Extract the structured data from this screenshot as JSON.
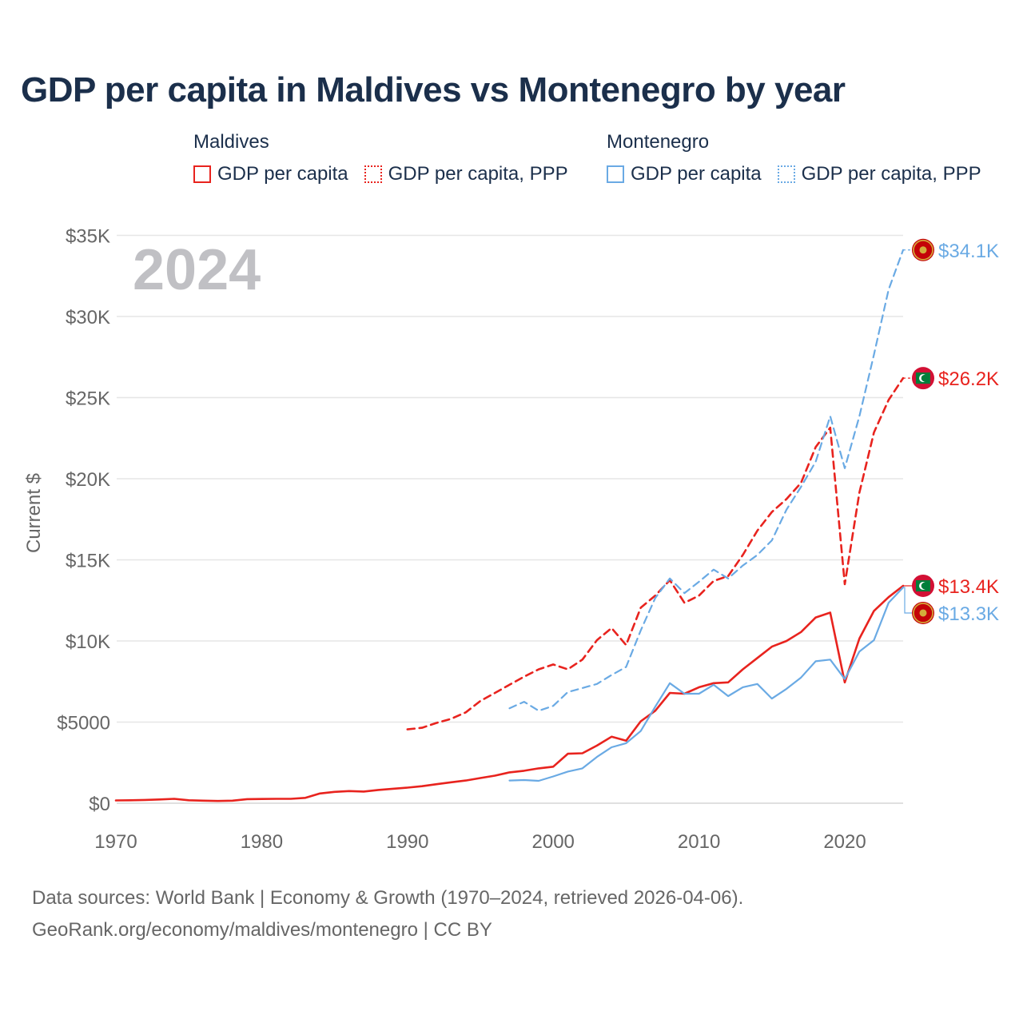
{
  "title": "GDP per capita in Maldives vs Montenegro by year",
  "legend": {
    "maldives": {
      "name": "Maldives",
      "gdp": "GDP per capita",
      "ppp": "GDP per capita, PPP"
    },
    "montenegro": {
      "name": "Montenegro",
      "gdp": "GDP per capita",
      "ppp": "GDP per capita, PPP"
    }
  },
  "colors": {
    "maldives": "#e8231e",
    "montenegro": "#6aaae4",
    "grid": "#e6e6e6",
    "axis_text": "#666666",
    "year_watermark": "#c0c0c4"
  },
  "footer": {
    "line1": "Data sources: World Bank | Economy & Growth (1970–2024, retrieved 2026-04-06).",
    "line2": "GeoRank.org/economy/maldives/montenegro | CC BY"
  },
  "chart_data": {
    "type": "line",
    "title": "GDP per capita in Maldives vs Montenegro by year",
    "year_label": "2024",
    "ylabel": "Current $",
    "xlabel": "",
    "xlim": [
      1970,
      2024
    ],
    "ylim": [
      0,
      35000
    ],
    "grid": true,
    "x_ticks": [
      1970,
      1980,
      1990,
      2000,
      2010,
      2020
    ],
    "x_tick_labels": [
      "1970",
      "1980",
      "1990",
      "2000",
      "2010",
      "2020"
    ],
    "y_ticks": [
      0,
      5000,
      10000,
      15000,
      20000,
      25000,
      30000,
      35000
    ],
    "y_tick_labels": [
      "$0",
      "$5000",
      "$10K",
      "$15K",
      "$20K",
      "$25K",
      "$30K",
      "$35K"
    ],
    "series": [
      {
        "name": "Maldives GDP per capita",
        "country": "maldives",
        "style": "solid",
        "end_label": "$13.4K",
        "x": [
          1970,
          1971,
          1972,
          1973,
          1974,
          1975,
          1976,
          1977,
          1978,
          1979,
          1980,
          1981,
          1982,
          1983,
          1984,
          1985,
          1986,
          1987,
          1988,
          1989,
          1990,
          1991,
          1992,
          1993,
          1994,
          1995,
          1996,
          1997,
          1998,
          1999,
          2000,
          2001,
          2002,
          2003,
          2004,
          2005,
          2006,
          2007,
          2008,
          2009,
          2010,
          2011,
          2012,
          2013,
          2014,
          2015,
          2016,
          2017,
          2018,
          2019,
          2020,
          2021,
          2022,
          2023,
          2024
        ],
        "values": [
          170,
          180,
          200,
          230,
          270,
          180,
          160,
          140,
          160,
          250,
          260,
          270,
          270,
          330,
          600,
          700,
          750,
          720,
          820,
          890,
          960,
          1050,
          1170,
          1290,
          1400,
          1550,
          1700,
          1900,
          2000,
          2150,
          2250,
          3050,
          3080,
          3550,
          4100,
          3850,
          5050,
          5700,
          6800,
          6750,
          7150,
          7400,
          7450,
          8250,
          8950,
          9650,
          10000,
          10550,
          11450,
          11750,
          7450,
          10150,
          11850,
          12700,
          13400
        ]
      },
      {
        "name": "Maldives GDP per capita, PPP",
        "country": "maldives",
        "style": "dashed",
        "end_label": "$26.2K",
        "x": [
          1990,
          1991,
          1992,
          1993,
          1994,
          1995,
          1996,
          1997,
          1998,
          1999,
          2000,
          2001,
          2002,
          2003,
          2004,
          2005,
          2006,
          2007,
          2008,
          2009,
          2010,
          2011,
          2012,
          2013,
          2014,
          2015,
          2016,
          2017,
          2018,
          2019,
          2020,
          2021,
          2022,
          2023,
          2024
        ],
        "values": [
          4550,
          4650,
          4950,
          5200,
          5600,
          6300,
          6800,
          7300,
          7800,
          8250,
          8550,
          8250,
          8850,
          10050,
          10800,
          9750,
          12050,
          12800,
          13750,
          12350,
          12800,
          13700,
          14000,
          15300,
          16800,
          17950,
          18750,
          19750,
          21950,
          23150,
          13500,
          19150,
          22850,
          24850,
          26200
        ]
      },
      {
        "name": "Montenegro GDP per capita",
        "country": "montenegro",
        "style": "solid",
        "end_label": "$13.3K",
        "x": [
          1997,
          1998,
          1999,
          2000,
          2001,
          2002,
          2003,
          2004,
          2005,
          2006,
          2007,
          2008,
          2009,
          2010,
          2011,
          2012,
          2013,
          2014,
          2015,
          2016,
          2017,
          2018,
          2019,
          2020,
          2021,
          2022,
          2023,
          2024
        ],
        "values": [
          1400,
          1430,
          1380,
          1650,
          1950,
          2150,
          2850,
          3450,
          3700,
          4450,
          5950,
          7400,
          6750,
          6750,
          7300,
          6600,
          7150,
          7350,
          6450,
          7050,
          7750,
          8750,
          8850,
          7650,
          9350,
          10050,
          12350,
          13300
        ]
      },
      {
        "name": "Montenegro GDP per capita, PPP",
        "country": "montenegro",
        "style": "dashed",
        "end_label": "$34.1K",
        "x": [
          1997,
          1998,
          1999,
          2000,
          2001,
          2002,
          2003,
          2004,
          2005,
          2006,
          2007,
          2008,
          2009,
          2010,
          2011,
          2012,
          2013,
          2014,
          2015,
          2016,
          2017,
          2018,
          2019,
          2020,
          2021,
          2022,
          2023,
          2024
        ],
        "values": [
          5850,
          6250,
          5700,
          6000,
          6850,
          7100,
          7350,
          7900,
          8400,
          10650,
          12650,
          13850,
          12950,
          13650,
          14400,
          13850,
          14650,
          15300,
          16200,
          18100,
          19500,
          21050,
          23850,
          20650,
          23850,
          27650,
          31650,
          34100
        ]
      }
    ]
  }
}
